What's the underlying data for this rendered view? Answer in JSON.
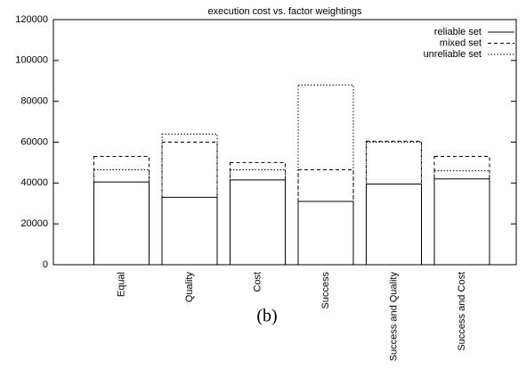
{
  "chart_data": {
    "type": "bar",
    "title": "execution cost vs. factor weightings",
    "categories": [
      "Equal",
      "Quality",
      "Cost",
      "Success",
      "Success and Quality",
      "Success and Cost"
    ],
    "series": [
      {
        "name": "reliable set",
        "color": "#000000",
        "dash": "solid",
        "values": [
          40500,
          33000,
          41500,
          31000,
          39500,
          42000
        ]
      },
      {
        "name": "mixed set",
        "color": "#000000",
        "dash": "dashed",
        "values": [
          53000,
          60000,
          50000,
          46500,
          60500,
          53000
        ]
      },
      {
        "name": "unreliable set",
        "color": "#000000",
        "dash": "dotted",
        "values": [
          46500,
          64000,
          46500,
          88000,
          60000,
          46000
        ]
      }
    ],
    "ylim": [
      0,
      120000
    ],
    "yticks": [
      0,
      20000,
      40000,
      60000,
      80000,
      100000,
      120000
    ],
    "legend": "top-right",
    "grid": false
  },
  "caption": "(b)"
}
